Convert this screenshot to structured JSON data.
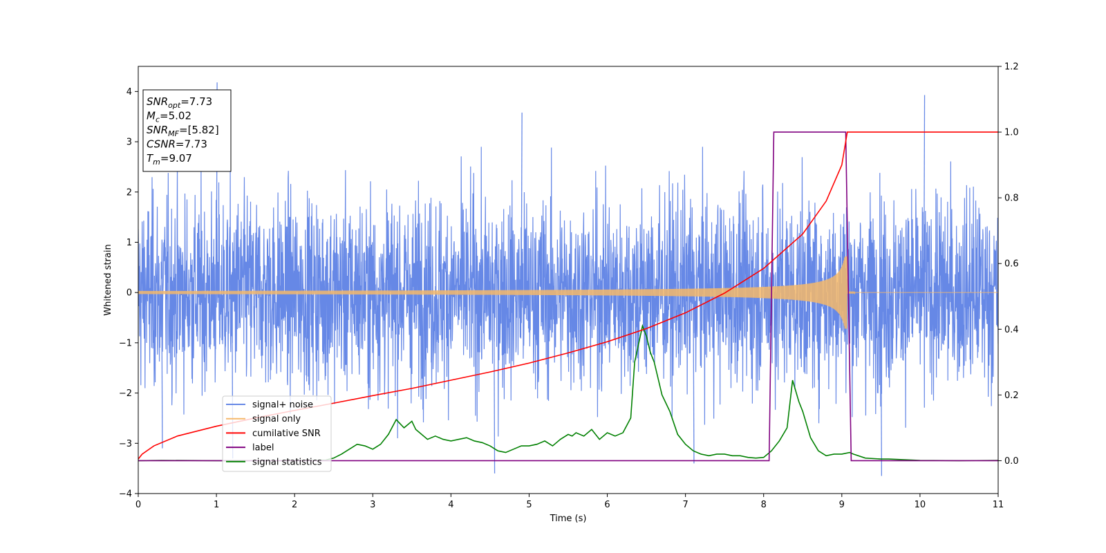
{
  "chart_data": {
    "type": "line",
    "xlabel": "Time (s)",
    "ylabel": "Whitened strain",
    "y2label": "",
    "xlim": [
      0,
      11
    ],
    "ylim": [
      -4,
      4.5
    ],
    "y2lim": [
      -0.1,
      1.2
    ],
    "x_ticks": [
      0,
      1,
      2,
      3,
      4,
      5,
      6,
      7,
      8,
      9,
      10,
      11
    ],
    "y_ticks": [
      -4,
      -3,
      -2,
      -1,
      0,
      1,
      2,
      3,
      4
    ],
    "y2_ticks": [
      0.0,
      0.2,
      0.4,
      0.6,
      0.8,
      1.0,
      1.2
    ],
    "grid": false,
    "legend_position": "lower-left",
    "annotations": [
      {
        "base": "SNR",
        "sub": "opt",
        "value": "=7.73"
      },
      {
        "base": "M",
        "sub": "c",
        "value": "=5.02"
      },
      {
        "base": "SNR",
        "sub": "MF",
        "value": "=[5.82]"
      },
      {
        "base": "CSNR",
        "sub": "",
        "value": "=7.73"
      },
      {
        "base": "T",
        "sub": "m",
        "value": "=9.07"
      }
    ],
    "series": [
      {
        "name": "signal+ noise",
        "color": "#6688e6",
        "axis": "left",
        "description_stats": {
          "x_range": [
            0,
            11
          ],
          "y_min": -3.65,
          "y_max": 4.18,
          "typical_band": [
            -2.2,
            2.2
          ]
        },
        "spikes": [
          [
            1.0,
            4.18
          ],
          [
            4.9,
            3.58
          ],
          [
            10.05,
            3.93
          ],
          [
            4.55,
            -3.6
          ],
          [
            9.5,
            -3.65
          ],
          [
            1.2,
            -3.3
          ],
          [
            7.1,
            -3.4
          ],
          [
            0.3,
            -3.1
          ]
        ]
      },
      {
        "name": "signal only",
        "color": "#f5b86a",
        "axis": "left",
        "chirp": {
          "start": 0,
          "merger": 9.07,
          "amp_start": 0.03,
          "amp_peak": 0.72
        }
      },
      {
        "name": "cumilative SNR",
        "color": "#ff0000",
        "axis": "right",
        "x": [
          0,
          0.05,
          0.2,
          0.5,
          1,
          1.5,
          2,
          2.5,
          3,
          3.5,
          4,
          4.5,
          5,
          5.5,
          6,
          6.5,
          7,
          7.5,
          8,
          8.5,
          8.8,
          9.0,
          9.07,
          11
        ],
        "y": [
          0.005,
          0.02,
          0.045,
          0.075,
          0.105,
          0.13,
          0.153,
          0.175,
          0.198,
          0.22,
          0.245,
          0.27,
          0.297,
          0.328,
          0.362,
          0.402,
          0.45,
          0.51,
          0.585,
          0.69,
          0.79,
          0.9,
          1.0,
          1.0
        ]
      },
      {
        "name": "label",
        "color": "#800080",
        "axis": "right",
        "x": [
          0,
          8.07,
          8.13,
          9.05,
          9.12,
          11
        ],
        "y": [
          0,
          0,
          1,
          1,
          0,
          0
        ]
      },
      {
        "name": "signal statistics",
        "color": "#008000",
        "axis": "right",
        "x": [
          0,
          0.3,
          1,
          2,
          2.4,
          2.5,
          2.6,
          2.7,
          2.8,
          2.9,
          3.0,
          3.1,
          3.2,
          3.3,
          3.4,
          3.45,
          3.5,
          3.55,
          3.6,
          3.7,
          3.8,
          3.9,
          4.0,
          4.1,
          4.2,
          4.3,
          4.4,
          4.5,
          4.6,
          4.7,
          4.8,
          4.9,
          5.0,
          5.1,
          5.2,
          5.3,
          5.4,
          5.5,
          5.55,
          5.6,
          5.7,
          5.8,
          5.9,
          6.0,
          6.1,
          6.2,
          6.3,
          6.35,
          6.45,
          6.5,
          6.55,
          6.6,
          6.7,
          6.8,
          6.9,
          7.0,
          7.1,
          7.2,
          7.3,
          7.4,
          7.5,
          7.6,
          7.7,
          7.8,
          7.9,
          8.0,
          8.1,
          8.2,
          8.3,
          8.37,
          8.45,
          8.5,
          8.6,
          8.7,
          8.8,
          8.9,
          9.0,
          9.1,
          9.15,
          9.3,
          9.5,
          9.6,
          9.8,
          10.0,
          10.5,
          11
        ],
        "y": [
          0.0,
          0.001,
          0.0,
          0.0,
          0.002,
          0.008,
          0.02,
          0.035,
          0.05,
          0.045,
          0.035,
          0.05,
          0.08,
          0.125,
          0.1,
          0.11,
          0.12,
          0.095,
          0.085,
          0.065,
          0.075,
          0.065,
          0.06,
          0.065,
          0.07,
          0.06,
          0.055,
          0.045,
          0.03,
          0.025,
          0.035,
          0.045,
          0.045,
          0.05,
          0.06,
          0.045,
          0.065,
          0.08,
          0.075,
          0.085,
          0.075,
          0.095,
          0.065,
          0.085,
          0.075,
          0.085,
          0.13,
          0.3,
          0.41,
          0.38,
          0.33,
          0.3,
          0.2,
          0.15,
          0.08,
          0.05,
          0.03,
          0.02,
          0.015,
          0.02,
          0.02,
          0.015,
          0.015,
          0.01,
          0.008,
          0.01,
          0.03,
          0.06,
          0.1,
          0.245,
          0.18,
          0.15,
          0.07,
          0.03,
          0.015,
          0.02,
          0.02,
          0.025,
          0.02,
          0.008,
          0.005,
          0.005,
          0.003,
          0.001,
          0.0,
          0.001
        ]
      }
    ]
  }
}
